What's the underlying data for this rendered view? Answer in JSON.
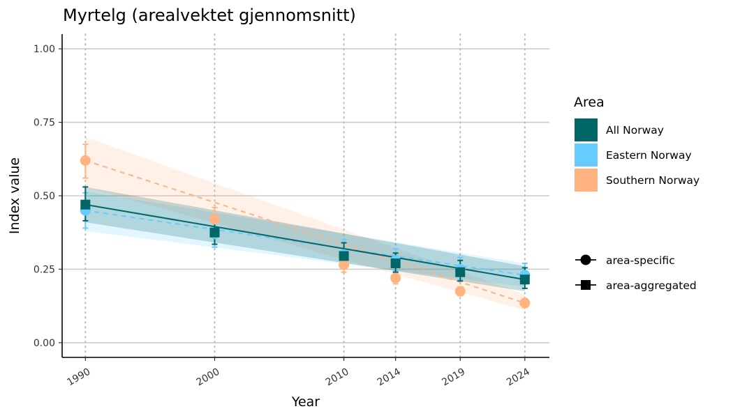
{
  "chart_data": {
    "type": "line",
    "title": "Myrtelg (arealvektet gjennomsnitt)",
    "xlabel": "Year",
    "ylabel": "Index value",
    "x_ticks": [
      1990,
      2000,
      2010,
      2014,
      2019,
      2024
    ],
    "x_tick_labels": [
      "1990",
      "2000",
      "2010",
      "2014",
      "2019",
      "2024"
    ],
    "y_ticks": [
      0.0,
      0.25,
      0.5,
      0.75,
      1.0
    ],
    "y_tick_labels": [
      "0.00",
      "0.25",
      "0.50",
      "0.75",
      "1.00"
    ],
    "xlim": [
      1988.2,
      2025.9
    ],
    "ylim": [
      -0.05,
      1.05
    ],
    "grid": "horizontal major lines; dotted vertical lines at data years",
    "legend_position": "right",
    "legend_title": "Area",
    "shape_legend": [
      "area-specific",
      "area-aggregated"
    ],
    "series": [
      {
        "name": "All Norway",
        "color": "#006666",
        "marker": "square",
        "line": "solid",
        "x": [
          1990,
          2000,
          2010,
          2014,
          2019,
          2024
        ],
        "values": [
          0.47,
          0.375,
          0.295,
          0.27,
          0.24,
          0.215
        ],
        "err_lo": [
          0.415,
          0.335,
          0.26,
          0.24,
          0.21,
          0.185
        ],
        "err_hi": [
          0.53,
          0.41,
          0.34,
          0.305,
          0.28,
          0.255
        ],
        "band_start": [
          0.41,
          0.53
        ],
        "band_end": [
          0.175,
          0.26
        ]
      },
      {
        "name": "Eastern Norway",
        "color": "#66CCFF",
        "marker": "circle",
        "line": "dashed",
        "x": [
          1990,
          2000,
          2010,
          2014,
          2019,
          2024
        ],
        "values": [
          0.45,
          0.37,
          0.3,
          0.28,
          0.25,
          0.23
        ],
        "err_lo": [
          0.39,
          0.325,
          0.265,
          0.245,
          0.215,
          0.2
        ],
        "err_hi": [
          0.51,
          0.41,
          0.35,
          0.32,
          0.29,
          0.27
        ],
        "band_start": [
          0.38,
          0.515
        ],
        "band_end": [
          0.19,
          0.27
        ]
      },
      {
        "name": "Southern Norway",
        "color": "#FFB380",
        "marker": "circle",
        "line": "dashed",
        "x": [
          1990,
          2000,
          2010,
          2014,
          2019,
          2024
        ],
        "values": [
          0.62,
          0.42,
          0.265,
          0.22,
          0.175,
          0.135
        ],
        "err_lo": [
          0.56,
          0.38,
          0.24,
          0.2,
          0.16,
          0.12
        ],
        "err_hi": [
          0.675,
          0.46,
          0.295,
          0.24,
          0.19,
          0.15
        ],
        "band_start": [
          0.53,
          0.7
        ],
        "band_end": [
          0.11,
          0.165
        ]
      }
    ]
  }
}
